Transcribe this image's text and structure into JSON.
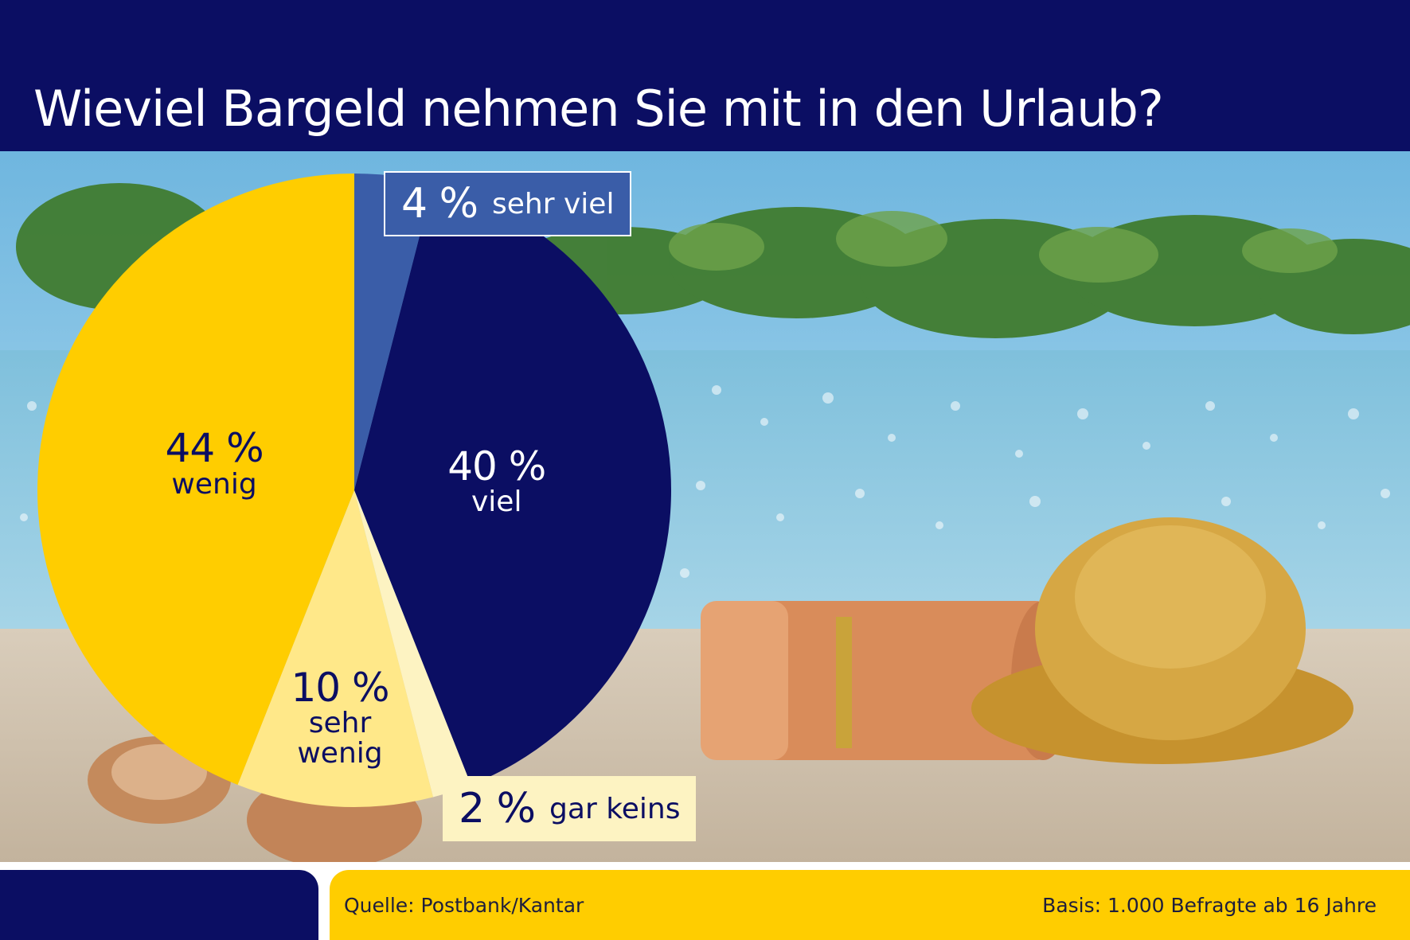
{
  "header": {
    "title": "Wieviel Bargeld nehmen Sie mit in den Urlaub?"
  },
  "colors": {
    "header_bg": "#0b0e63",
    "viel": "#0b0e63",
    "sehr_viel": "#3a5da8",
    "wenig": "#ffcd00",
    "sehr_wenig": "#ffe889",
    "gar_keins": "#fdf3c2",
    "footer_accent": "#ffcd00"
  },
  "chart_data": {
    "type": "pie",
    "slices": [
      {
        "label": "sehr viel",
        "value": 4,
        "display": "4 %"
      },
      {
        "label": "viel",
        "value": 40,
        "display": "40 %"
      },
      {
        "label": "gar keins",
        "value": 2,
        "display": "2 %"
      },
      {
        "label": "sehr wenig",
        "value": 10,
        "display": "10 %",
        "label_lines": [
          "sehr",
          "wenig"
        ]
      },
      {
        "label": "wenig",
        "value": 44,
        "display": "44 %"
      }
    ],
    "unit": "%"
  },
  "footer": {
    "source": "Quelle: Postbank/Kantar",
    "basis": "Basis: 1.000 Befragte ab 16 Jahre"
  }
}
